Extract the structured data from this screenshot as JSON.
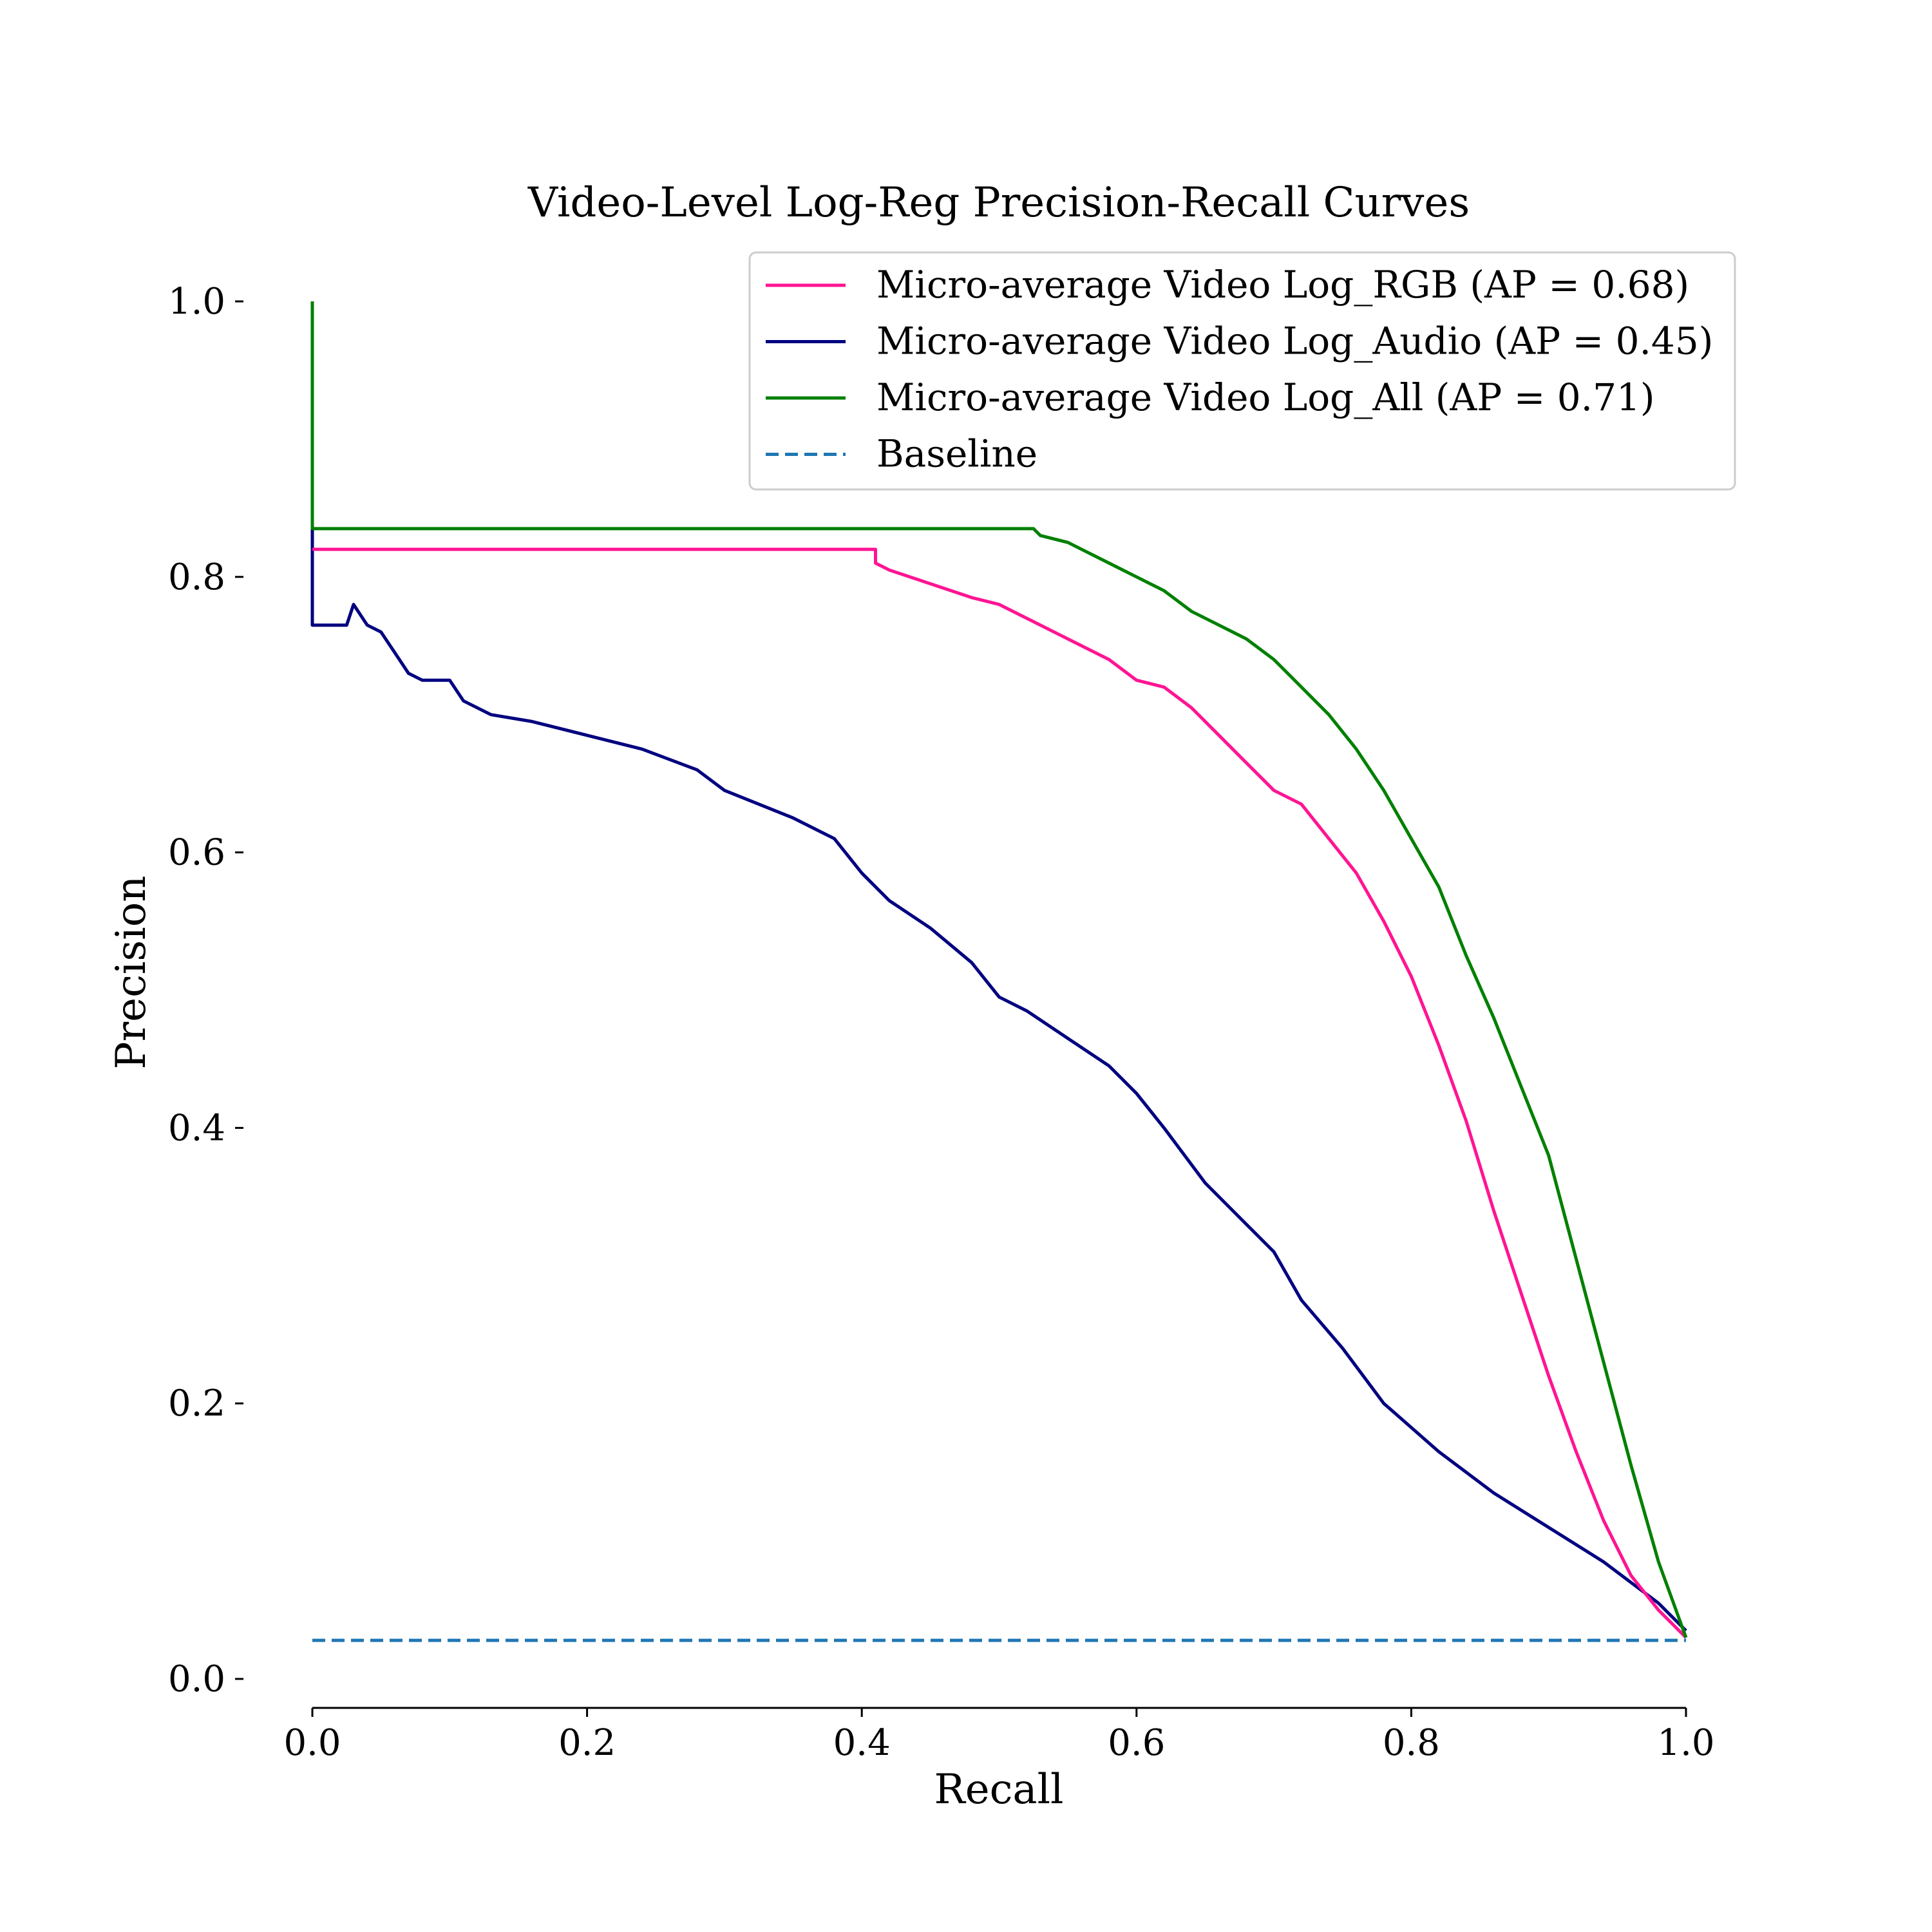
{
  "chart_data": {
    "type": "line",
    "title": "Video-Level Log-Reg Precision-Recall Curves",
    "xlabel": "Recall",
    "ylabel": "Precision",
    "xlim": [
      0.0,
      1.0
    ],
    "ylim": [
      0.0,
      1.0
    ],
    "xticks": [
      "0.0",
      "0.2",
      "0.4",
      "0.6",
      "0.8",
      "1.0"
    ],
    "yticks": [
      "0.0",
      "0.2",
      "0.4",
      "0.6",
      "0.8",
      "1.0"
    ],
    "grid": false,
    "legend_position": "top-right",
    "series": [
      {
        "name": "Micro-average Video Log_RGB (AP = 0.68)",
        "color": "#ff1493",
        "dash": "solid",
        "points": [
          [
            0.0,
            0.82
          ],
          [
            0.41,
            0.82
          ],
          [
            0.41,
            0.81
          ],
          [
            0.42,
            0.805
          ],
          [
            0.45,
            0.795
          ],
          [
            0.48,
            0.785
          ],
          [
            0.5,
            0.78
          ],
          [
            0.52,
            0.77
          ],
          [
            0.55,
            0.755
          ],
          [
            0.58,
            0.74
          ],
          [
            0.6,
            0.725
          ],
          [
            0.62,
            0.72
          ],
          [
            0.64,
            0.705
          ],
          [
            0.66,
            0.685
          ],
          [
            0.68,
            0.665
          ],
          [
            0.7,
            0.645
          ],
          [
            0.72,
            0.635
          ],
          [
            0.74,
            0.61
          ],
          [
            0.76,
            0.585
          ],
          [
            0.78,
            0.55
          ],
          [
            0.8,
            0.51
          ],
          [
            0.82,
            0.46
          ],
          [
            0.84,
            0.405
          ],
          [
            0.86,
            0.34
          ],
          [
            0.88,
            0.28
          ],
          [
            0.9,
            0.22
          ],
          [
            0.92,
            0.165
          ],
          [
            0.94,
            0.115
          ],
          [
            0.96,
            0.075
          ],
          [
            0.98,
            0.05
          ],
          [
            1.0,
            0.03
          ]
        ]
      },
      {
        "name": "Micro-average Video Log_Audio (AP = 0.45)",
        "color": "#000080",
        "dash": "solid",
        "points": [
          [
            0.0,
            0.835
          ],
          [
            0.0,
            0.765
          ],
          [
            0.025,
            0.765
          ],
          [
            0.03,
            0.78
          ],
          [
            0.04,
            0.765
          ],
          [
            0.05,
            0.76
          ],
          [
            0.06,
            0.745
          ],
          [
            0.07,
            0.73
          ],
          [
            0.08,
            0.725
          ],
          [
            0.1,
            0.725
          ],
          [
            0.11,
            0.71
          ],
          [
            0.13,
            0.7
          ],
          [
            0.16,
            0.695
          ],
          [
            0.2,
            0.685
          ],
          [
            0.24,
            0.675
          ],
          [
            0.28,
            0.66
          ],
          [
            0.3,
            0.645
          ],
          [
            0.35,
            0.625
          ],
          [
            0.38,
            0.61
          ],
          [
            0.4,
            0.585
          ],
          [
            0.42,
            0.565
          ],
          [
            0.45,
            0.545
          ],
          [
            0.48,
            0.52
          ],
          [
            0.5,
            0.495
          ],
          [
            0.52,
            0.485
          ],
          [
            0.55,
            0.465
          ],
          [
            0.58,
            0.445
          ],
          [
            0.6,
            0.425
          ],
          [
            0.62,
            0.4
          ],
          [
            0.65,
            0.36
          ],
          [
            0.68,
            0.33
          ],
          [
            0.7,
            0.31
          ],
          [
            0.72,
            0.275
          ],
          [
            0.75,
            0.24
          ],
          [
            0.78,
            0.2
          ],
          [
            0.82,
            0.165
          ],
          [
            0.86,
            0.135
          ],
          [
            0.9,
            0.11
          ],
          [
            0.94,
            0.085
          ],
          [
            0.98,
            0.055
          ],
          [
            1.0,
            0.035
          ]
        ]
      },
      {
        "name": "Micro-average Video Log_All (AP = 0.71)",
        "color": "#008000",
        "dash": "solid",
        "points": [
          [
            0.0,
            1.0
          ],
          [
            0.0,
            0.835
          ],
          [
            0.525,
            0.835
          ],
          [
            0.53,
            0.83
          ],
          [
            0.55,
            0.825
          ],
          [
            0.58,
            0.81
          ],
          [
            0.6,
            0.8
          ],
          [
            0.62,
            0.79
          ],
          [
            0.64,
            0.775
          ],
          [
            0.66,
            0.765
          ],
          [
            0.68,
            0.755
          ],
          [
            0.7,
            0.74
          ],
          [
            0.72,
            0.72
          ],
          [
            0.74,
            0.7
          ],
          [
            0.76,
            0.675
          ],
          [
            0.78,
            0.645
          ],
          [
            0.8,
            0.61
          ],
          [
            0.82,
            0.575
          ],
          [
            0.84,
            0.525
          ],
          [
            0.86,
            0.48
          ],
          [
            0.88,
            0.43
          ],
          [
            0.9,
            0.38
          ],
          [
            0.92,
            0.305
          ],
          [
            0.94,
            0.23
          ],
          [
            0.96,
            0.155
          ],
          [
            0.98,
            0.085
          ],
          [
            1.0,
            0.03
          ]
        ]
      },
      {
        "name": "Baseline",
        "color": "#1f77b4",
        "dash": "dashed",
        "points": [
          [
            0.0,
            0.028
          ],
          [
            1.0,
            0.028
          ]
        ]
      }
    ]
  }
}
